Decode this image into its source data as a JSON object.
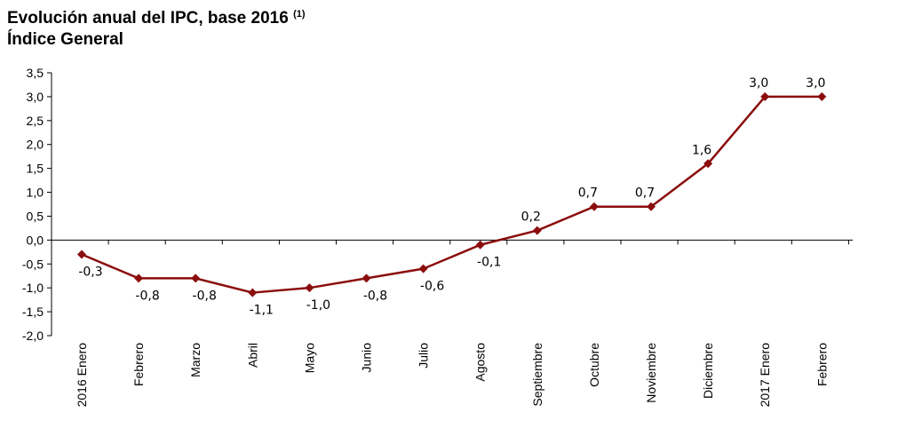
{
  "title": {
    "line1": "Evolución anual del IPC, base 2016",
    "note": "(1)",
    "line2": "Índice General"
  },
  "colors": {
    "series": "#8b0d0d",
    "axis": "#000000"
  },
  "chart_data": {
    "type": "line",
    "title": "Evolución anual del IPC, base 2016 (1) Índice General",
    "xlabel": "",
    "ylabel": "",
    "ylim": [
      -2.0,
      3.5
    ],
    "yticks": [
      "3,5",
      "3,0",
      "2,5",
      "2,0",
      "1,5",
      "1,0",
      "0,5",
      "0,0",
      "-0,5",
      "-1,0",
      "-1,5",
      "-2,0"
    ],
    "ytick_values": [
      3.5,
      3.0,
      2.5,
      2.0,
      1.5,
      1.0,
      0.5,
      0.0,
      -0.5,
      -1.0,
      -1.5,
      -2.0
    ],
    "categories": [
      "2016 Enero",
      "Febrero",
      "Marzo",
      "Abril",
      "Mayo",
      "Junio",
      "Julio",
      "Agosto",
      "Septiembre",
      "Octubre",
      "Noviembre",
      "Diciembre",
      "2017 Enero",
      "Febrero"
    ],
    "grid": false,
    "legend": "none",
    "series": [
      {
        "values": [
          -0.3,
          -0.8,
          -0.8,
          -1.1,
          -1.0,
          -0.8,
          -0.6,
          -0.1,
          0.2,
          0.7,
          0.7,
          1.6,
          3.0,
          3.0
        ],
        "labels": [
          "-0,3",
          "-0,8",
          "-0,8",
          "-1,1",
          "-1,0",
          "-0,8",
          "-0,6",
          "-0,1",
          "0,2",
          "0,7",
          "0,7",
          "1,6",
          "3,0",
          "3,0"
        ]
      }
    ]
  }
}
